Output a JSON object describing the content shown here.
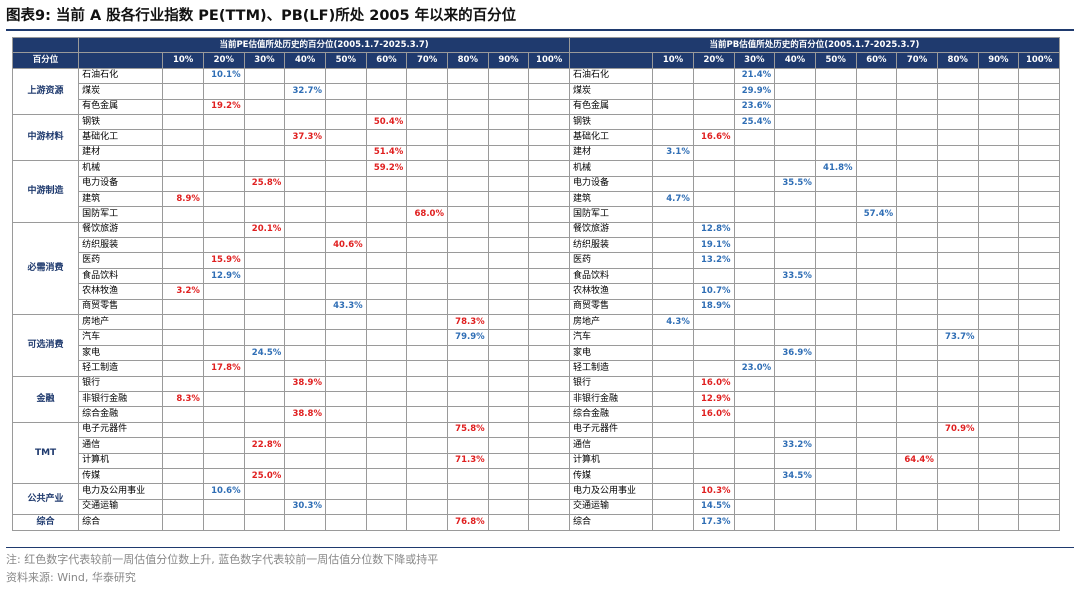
{
  "title": "图表9:  当前 A 股各行业指数 PE(TTM)、PB(LF)所处 2005 年以来的百分位",
  "pe_header": "当前PE估值所处历史的百分位(2005.1.7-2025.3.7)",
  "pb_header": "当前PB估值所处历史的百分位(2005.1.7-2025.3.7)",
  "corner_label": "百分位",
  "percentile_cols": [
    "10%",
    "20%",
    "30%",
    "40%",
    "50%",
    "60%",
    "70%",
    "80%",
    "90%",
    "100%"
  ],
  "colors": {
    "header_bg": "#1f3a6e",
    "up_red": "#e02020",
    "down_blue": "#2f6eb5"
  },
  "groups": [
    {
      "name": "上游资源",
      "rows": [
        {
          "industry": "石油石化",
          "pe": "10.1%",
          "pe_col": 1,
          "pe_color": "blue",
          "pb": "21.4%",
          "pb_col": 2,
          "pb_color": "blue"
        },
        {
          "industry": "煤炭",
          "pe": "32.7%",
          "pe_col": 3,
          "pe_color": "blue",
          "pb": "29.9%",
          "pb_col": 2,
          "pb_color": "blue"
        },
        {
          "industry": "有色金属",
          "pe": "19.2%",
          "pe_col": 1,
          "pe_color": "red",
          "pb": "23.6%",
          "pb_col": 2,
          "pb_color": "blue"
        }
      ]
    },
    {
      "name": "中游材料",
      "rows": [
        {
          "industry": "钢铁",
          "pe": "50.4%",
          "pe_col": 5,
          "pe_color": "red",
          "pb": "25.4%",
          "pb_col": 2,
          "pb_color": "blue"
        },
        {
          "industry": "基础化工",
          "pe": "37.3%",
          "pe_col": 3,
          "pe_color": "red",
          "pb": "16.6%",
          "pb_col": 1,
          "pb_color": "red"
        },
        {
          "industry": "建材",
          "pe": "51.4%",
          "pe_col": 5,
          "pe_color": "red",
          "pb": "3.1%",
          "pb_col": 0,
          "pb_color": "blue"
        }
      ]
    },
    {
      "name": "中游制造",
      "rows": [
        {
          "industry": "机械",
          "pe": "59.2%",
          "pe_col": 5,
          "pe_color": "red",
          "pb": "41.8%",
          "pb_col": 4,
          "pb_color": "blue"
        },
        {
          "industry": "电力设备",
          "pe": "25.8%",
          "pe_col": 2,
          "pe_color": "red",
          "pb": "35.5%",
          "pb_col": 3,
          "pb_color": "blue"
        },
        {
          "industry": "建筑",
          "pe": "8.9%",
          "pe_col": 0,
          "pe_color": "red",
          "pb": "4.7%",
          "pb_col": 0,
          "pb_color": "blue"
        },
        {
          "industry": "国防军工",
          "pe": "68.0%",
          "pe_col": 6,
          "pe_color": "red",
          "pb": "57.4%",
          "pb_col": 5,
          "pb_color": "blue"
        }
      ]
    },
    {
      "name": "必需消费",
      "rows": [
        {
          "industry": "餐饮旅游",
          "pe": "20.1%",
          "pe_col": 2,
          "pe_color": "red",
          "pb": "12.8%",
          "pb_col": 1,
          "pb_color": "blue"
        },
        {
          "industry": "纺织服装",
          "pe": "40.6%",
          "pe_col": 4,
          "pe_color": "red",
          "pb": "19.1%",
          "pb_col": 1,
          "pb_color": "blue"
        },
        {
          "industry": "医药",
          "pe": "15.9%",
          "pe_col": 1,
          "pe_color": "red",
          "pb": "13.2%",
          "pb_col": 1,
          "pb_color": "blue"
        },
        {
          "industry": "食品饮料",
          "pe": "12.9%",
          "pe_col": 1,
          "pe_color": "blue",
          "pb": "33.5%",
          "pb_col": 3,
          "pb_color": "blue"
        },
        {
          "industry": "农林牧渔",
          "pe": "3.2%",
          "pe_col": 0,
          "pe_color": "red",
          "pb": "10.7%",
          "pb_col": 1,
          "pb_color": "blue"
        },
        {
          "industry": "商贸零售",
          "pe": "43.3%",
          "pe_col": 4,
          "pe_color": "blue",
          "pb": "18.9%",
          "pb_col": 1,
          "pb_color": "blue"
        }
      ]
    },
    {
      "name": "可选消费",
      "rows": [
        {
          "industry": "房地产",
          "pe": "78.3%",
          "pe_col": 7,
          "pe_color": "red",
          "pb": "4.3%",
          "pb_col": 0,
          "pb_color": "blue"
        },
        {
          "industry": "汽车",
          "pe": "79.9%",
          "pe_col": 7,
          "pe_color": "blue",
          "pb": "73.7%",
          "pb_col": 7,
          "pb_color": "blue"
        },
        {
          "industry": "家电",
          "pe": "24.5%",
          "pe_col": 2,
          "pe_color": "blue",
          "pb": "36.9%",
          "pb_col": 3,
          "pb_color": "blue"
        },
        {
          "industry": "轻工制造",
          "pe": "17.8%",
          "pe_col": 1,
          "pe_color": "red",
          "pb": "23.0%",
          "pb_col": 2,
          "pb_color": "blue"
        }
      ]
    },
    {
      "name": "金融",
      "rows": [
        {
          "industry": "银行",
          "pe": "38.9%",
          "pe_col": 3,
          "pe_color": "red",
          "pb": "16.0%",
          "pb_col": 1,
          "pb_color": "red"
        },
        {
          "industry": "非银行金融",
          "pe": "8.3%",
          "pe_col": 0,
          "pe_color": "red",
          "pb": "12.9%",
          "pb_col": 1,
          "pb_color": "red"
        },
        {
          "industry": "综合金融",
          "pe": "38.8%",
          "pe_col": 3,
          "pe_color": "red",
          "pb": "16.0%",
          "pb_col": 1,
          "pb_color": "red"
        }
      ]
    },
    {
      "name": "TMT",
      "rows": [
        {
          "industry": "电子元器件",
          "pe": "75.8%",
          "pe_col": 7,
          "pe_color": "red",
          "pb": "70.9%",
          "pb_col": 7,
          "pb_color": "red"
        },
        {
          "industry": "通信",
          "pe": "22.8%",
          "pe_col": 2,
          "pe_color": "red",
          "pb": "33.2%",
          "pb_col": 3,
          "pb_color": "blue"
        },
        {
          "industry": "计算机",
          "pe": "71.3%",
          "pe_col": 7,
          "pe_color": "red",
          "pb": "64.4%",
          "pb_col": 6,
          "pb_color": "red"
        },
        {
          "industry": "传媒",
          "pe": "25.0%",
          "pe_col": 2,
          "pe_color": "red",
          "pb": "34.5%",
          "pb_col": 3,
          "pb_color": "blue"
        }
      ]
    },
    {
      "name": "公共产业",
      "rows": [
        {
          "industry": "电力及公用事业",
          "pe": "10.6%",
          "pe_col": 1,
          "pe_color": "blue",
          "pb": "10.3%",
          "pb_col": 1,
          "pb_color": "red"
        },
        {
          "industry": "交通运输",
          "pe": "30.3%",
          "pe_col": 3,
          "pe_color": "blue",
          "pb": "14.5%",
          "pb_col": 1,
          "pb_color": "blue"
        }
      ]
    },
    {
      "name": "综合",
      "rows": [
        {
          "industry": "综合",
          "pe": "76.8%",
          "pe_col": 7,
          "pe_color": "red",
          "pb": "17.3%",
          "pb_col": 1,
          "pb_color": "blue"
        }
      ]
    }
  ],
  "note": "注: 红色数字代表较前一周估值分位数上升, 蓝色数字代表较前一周估值分位数下降或持平",
  "source": "资料来源: Wind, 华泰研究"
}
